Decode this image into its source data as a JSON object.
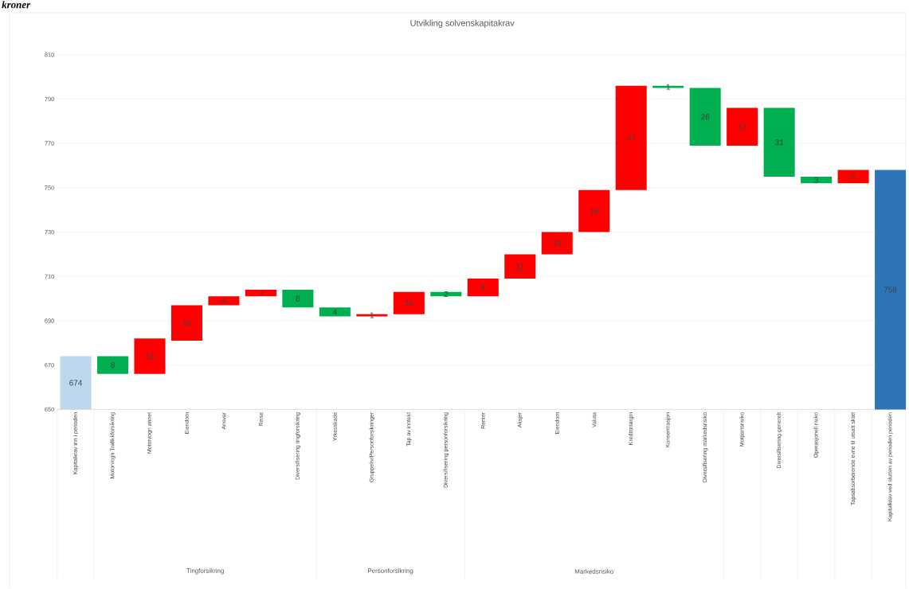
{
  "chart_data": {
    "type": "bar",
    "title": "Utvikling solvenskapitakrav",
    "categories": [
      "Kapitalkrav inn i perioden",
      "Motorvogn Trafikkforsikring",
      "Motorvogn annet",
      "Eiendom",
      "Ansvar",
      "Reise",
      "Diversifisering tingforsikring",
      "Yrkesskade",
      "Gruppeliv/Personforsikringer",
      "Tap av inntekt",
      "Diversifisering personforsikring",
      "Renter",
      "Aksjer",
      "Eiendom",
      "Valuta",
      "Kredittmargin",
      "Konsentrasjon",
      "Diversifisering markedsrisiko",
      "Motpartsrisiko",
      "Diversifisering generelt",
      "Operasjonell risiko",
      "Tapsabsorberende evne til utsatt skatt",
      "Kapitalkrav ved slutten av perioden perioden"
    ],
    "values": [
      674,
      -8,
      16,
      16,
      4,
      3,
      -8,
      -4,
      1,
      10,
      -2,
      8,
      11,
      10,
      19,
      47,
      -1,
      -26,
      17,
      -31,
      -3,
      6,
      758
    ],
    "base": [
      null,
      674,
      666,
      681,
      697,
      701,
      704,
      696,
      692,
      693,
      703,
      701,
      709,
      720,
      730,
      749,
      796,
      795,
      769,
      786,
      755,
      752,
      null
    ],
    "colors": [
      "#bdd7ee",
      "#00b050",
      "#ff0000",
      "#ff0000",
      "#ff0000",
      "#ff0000",
      "#00b050",
      "#00b050",
      "#ff0000",
      "#ff0000",
      "#00b050",
      "#ff0000",
      "#ff0000",
      "#ff0000",
      "#ff0000",
      "#ff0000",
      "#00b050",
      "#00b050",
      "#ff0000",
      "#00b050",
      "#00b050",
      "#ff0000",
      "#2e75b6"
    ],
    "value_labels": [
      "674",
      "8",
      "16",
      "16",
      "4",
      "3",
      "8",
      "4",
      "1",
      "10",
      "2",
      "8",
      "11",
      "10",
      "19",
      "47",
      "1",
      "26",
      "17",
      "31",
      "3",
      "6",
      "758"
    ],
    "ylim": [
      650,
      810
    ],
    "yticks": [
      650,
      670,
      690,
      710,
      730,
      750,
      770,
      790,
      810
    ],
    "grid": "y",
    "annotations": [
      "kroner",
      "Tingforsikring",
      "Personforsikring",
      "Markedsrisiko"
    ]
  }
}
